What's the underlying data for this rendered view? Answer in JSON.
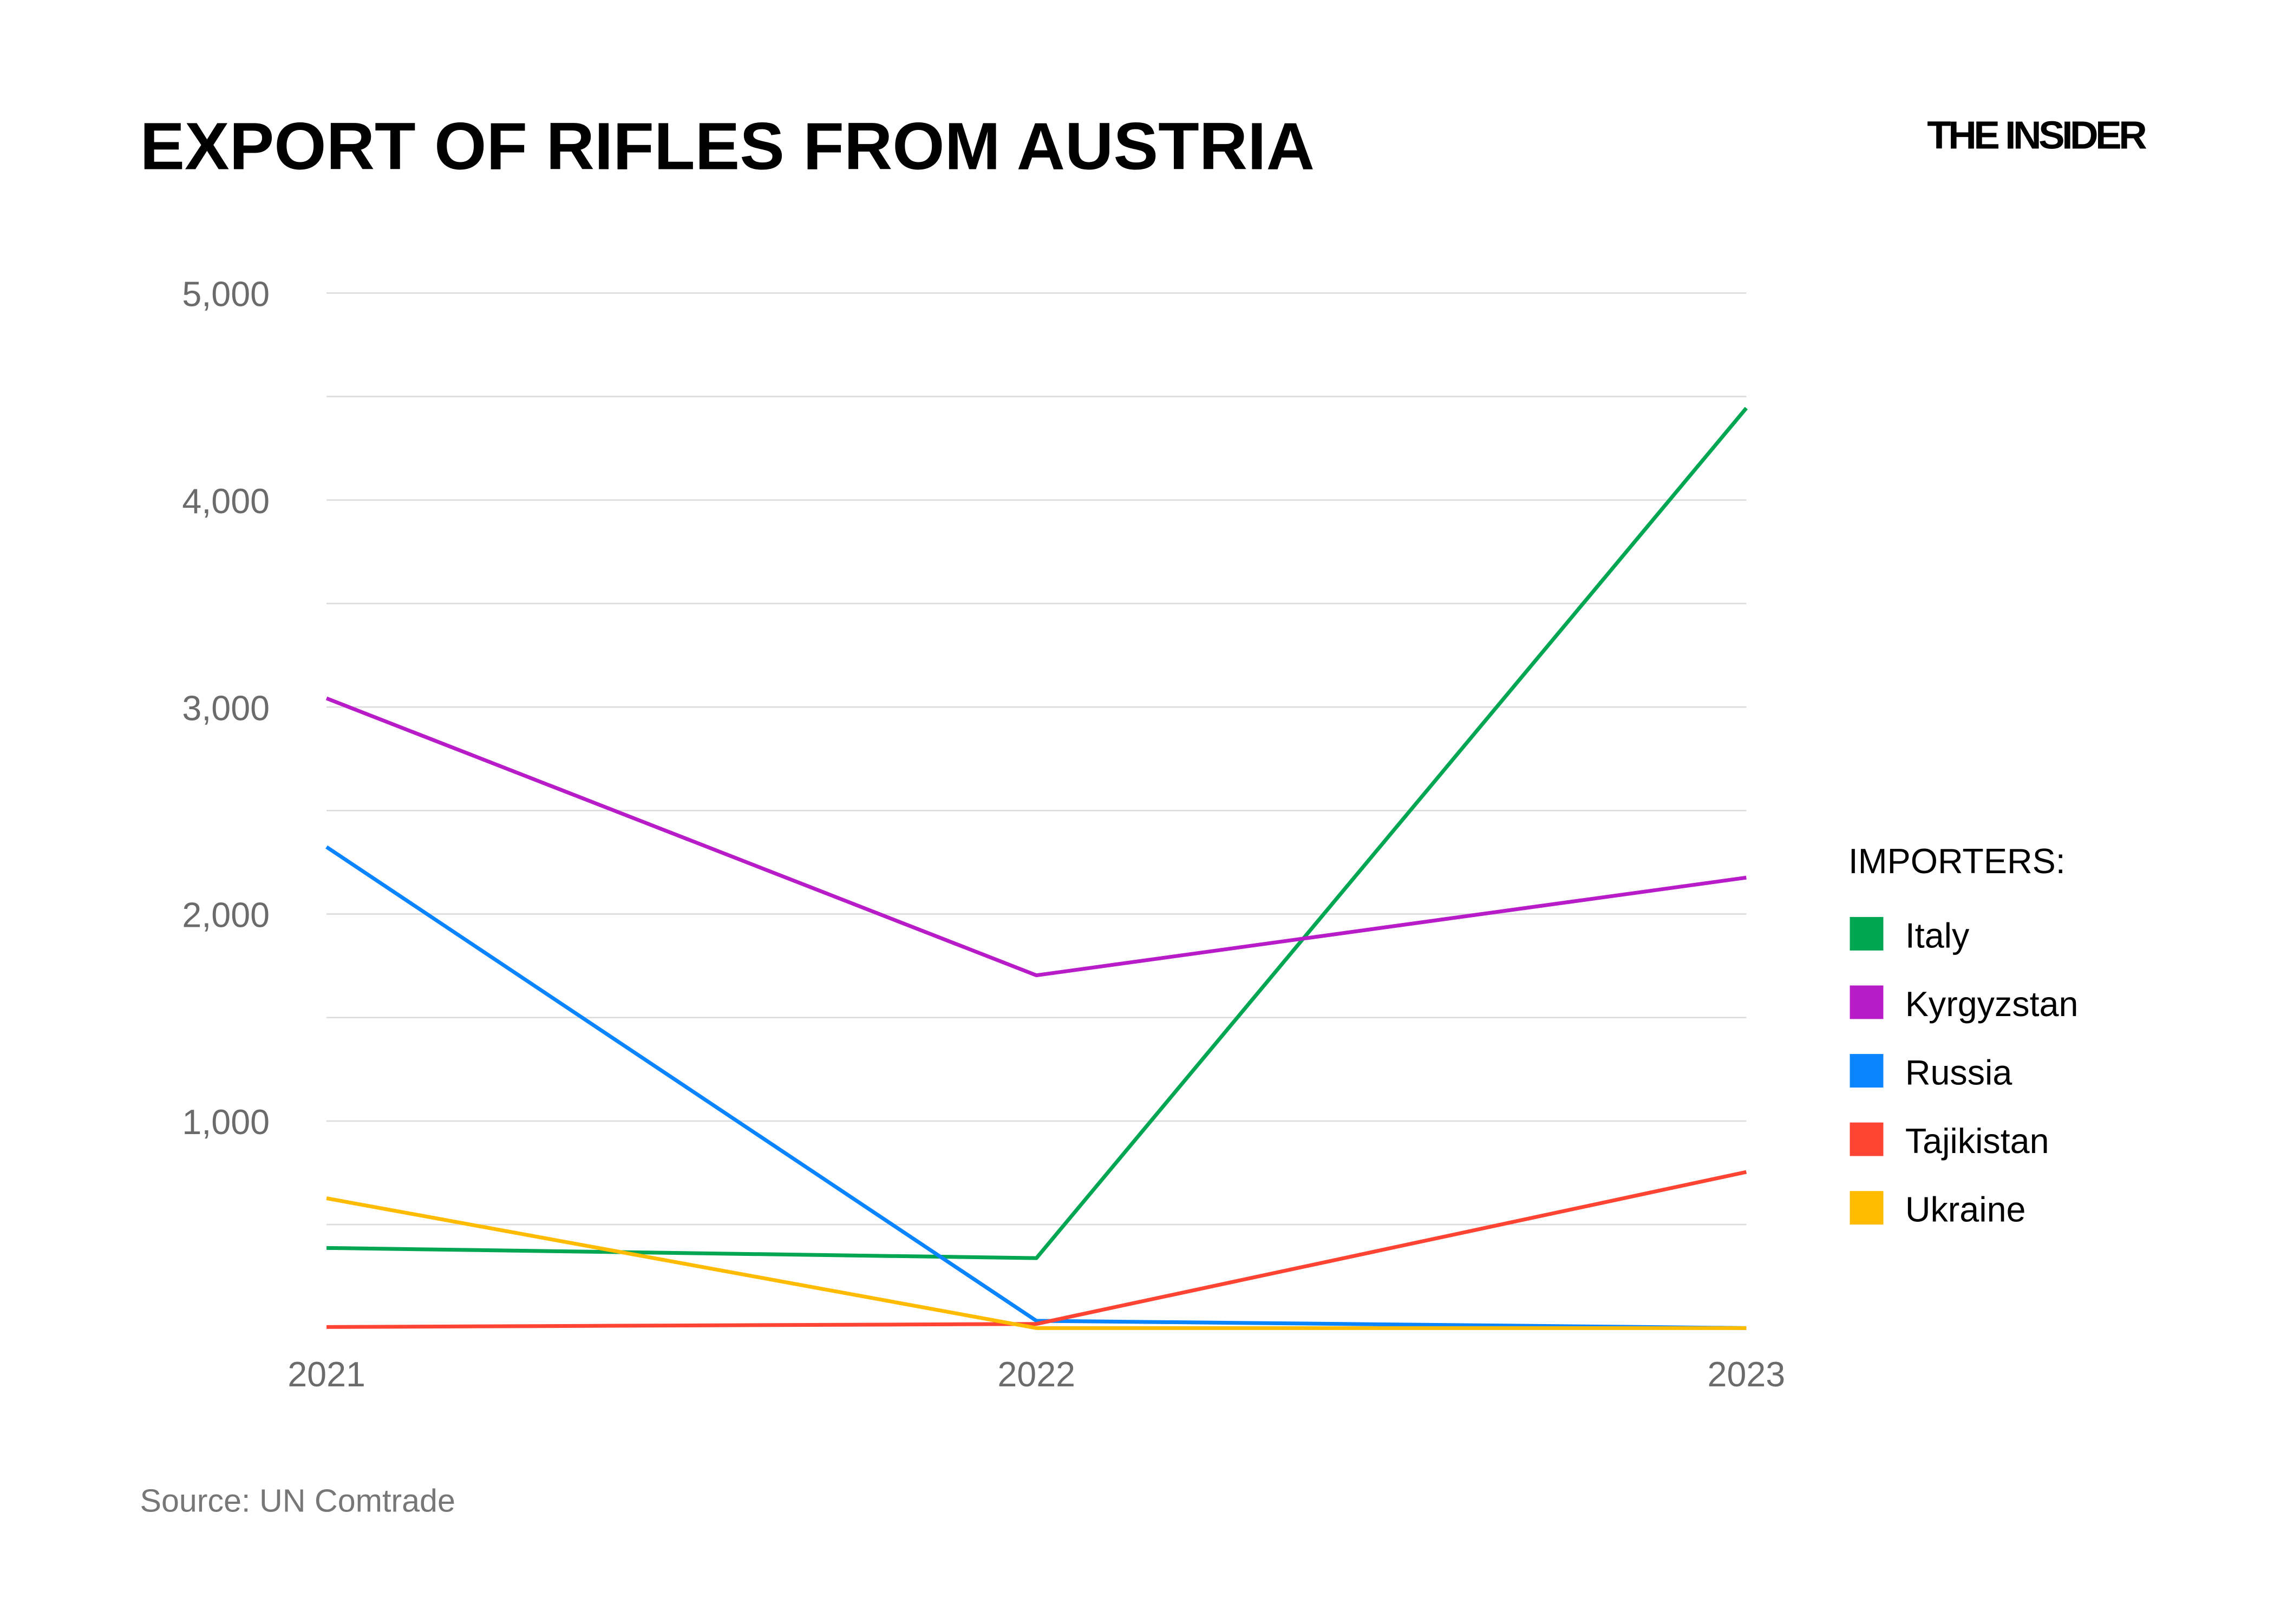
{
  "chart_data": {
    "type": "line",
    "title": "EXPORT OF RIFLES FROM AUSTRIA",
    "brand": "THE INSIDER",
    "source": "Source: UN Comtrade",
    "x": [
      "2021",
      "2022",
      "2023"
    ],
    "ylim": [
      0,
      5000
    ],
    "yticks": [
      1000,
      2000,
      3000,
      4000,
      5000
    ],
    "ytick_labels": [
      "1,000",
      "2,000",
      "3,000",
      "4,000",
      "5,000"
    ],
    "grid_step": 500,
    "grid": true,
    "legend_title": "IMPORTERS:",
    "legend_position": "right",
    "series": [
      {
        "name": "Italy",
        "color": "#00a651",
        "values": [
          387,
          338,
          4444
        ]
      },
      {
        "name": "Kyrgyzstan",
        "color": "#b81cc8",
        "values": [
          3042,
          1704,
          2176
        ]
      },
      {
        "name": "Russia",
        "color": "#0a84ff",
        "values": [
          2324,
          35,
          0
        ]
      },
      {
        "name": "Tajikistan",
        "color": "#ff4433",
        "values": [
          5,
          20,
          754
        ]
      },
      {
        "name": "Ukraine",
        "color": "#ffbb00",
        "values": [
          627,
          0,
          0
        ]
      }
    ]
  }
}
